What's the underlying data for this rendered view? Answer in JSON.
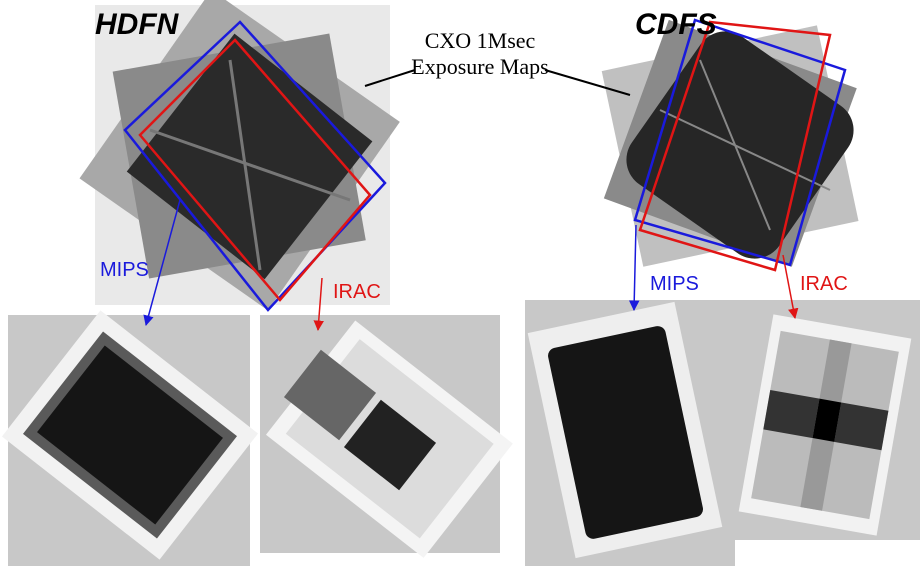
{
  "title_hdfn": "HDFN",
  "title_cdfs": "CDFS",
  "callout": {
    "line1": "CXO 1Msec",
    "line2": "Exposure Maps"
  },
  "hdfn": {
    "mips": "MIPS",
    "irac": "IRAC"
  },
  "cdfs": {
    "mips": "MIPS",
    "irac": "IRAC"
  }
}
